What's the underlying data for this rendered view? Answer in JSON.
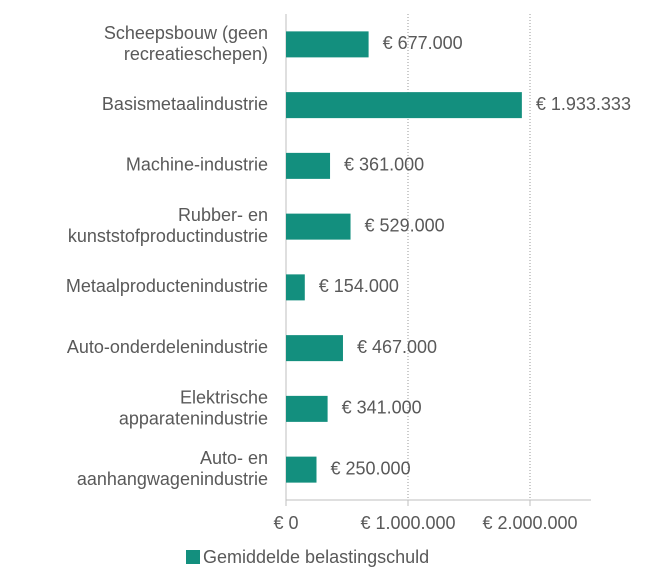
{
  "chart_data": {
    "type": "bar",
    "orientation": "horizontal",
    "categories": [
      "Scheepsbouw (geen\nrecreatieschepen)",
      "Basismetaalindustrie",
      "Machine-industrie",
      "Rubber- en\nkunststofproductindustrie",
      "Metaalproductenindustrie",
      "Auto-onderdelenindustrie",
      "Elektrische\napparatenindustrie",
      "Auto- en\naanhangwagenindustrie"
    ],
    "series": [
      {
        "name": "Gemiddelde belastingschuld",
        "color": "#138f7e",
        "values": [
          677000,
          1933333,
          361000,
          529000,
          154000,
          467000,
          341000,
          250000
        ],
        "value_labels": [
          "€ 677.000",
          "€ 1.933.333",
          "€ 361.000",
          "€ 529.000",
          "€ 154.000",
          "€ 467.000",
          "€ 341.000",
          "€ 250.000"
        ]
      }
    ],
    "xlim": [
      0,
      2500000
    ],
    "xticks": [
      {
        "value": 0,
        "label": "€ 0"
      },
      {
        "value": 1000000,
        "label": "€ 1.000.000"
      },
      {
        "value": 2000000,
        "label": "€ 2.000.000"
      }
    ],
    "grid": true,
    "legend": "bottom"
  }
}
